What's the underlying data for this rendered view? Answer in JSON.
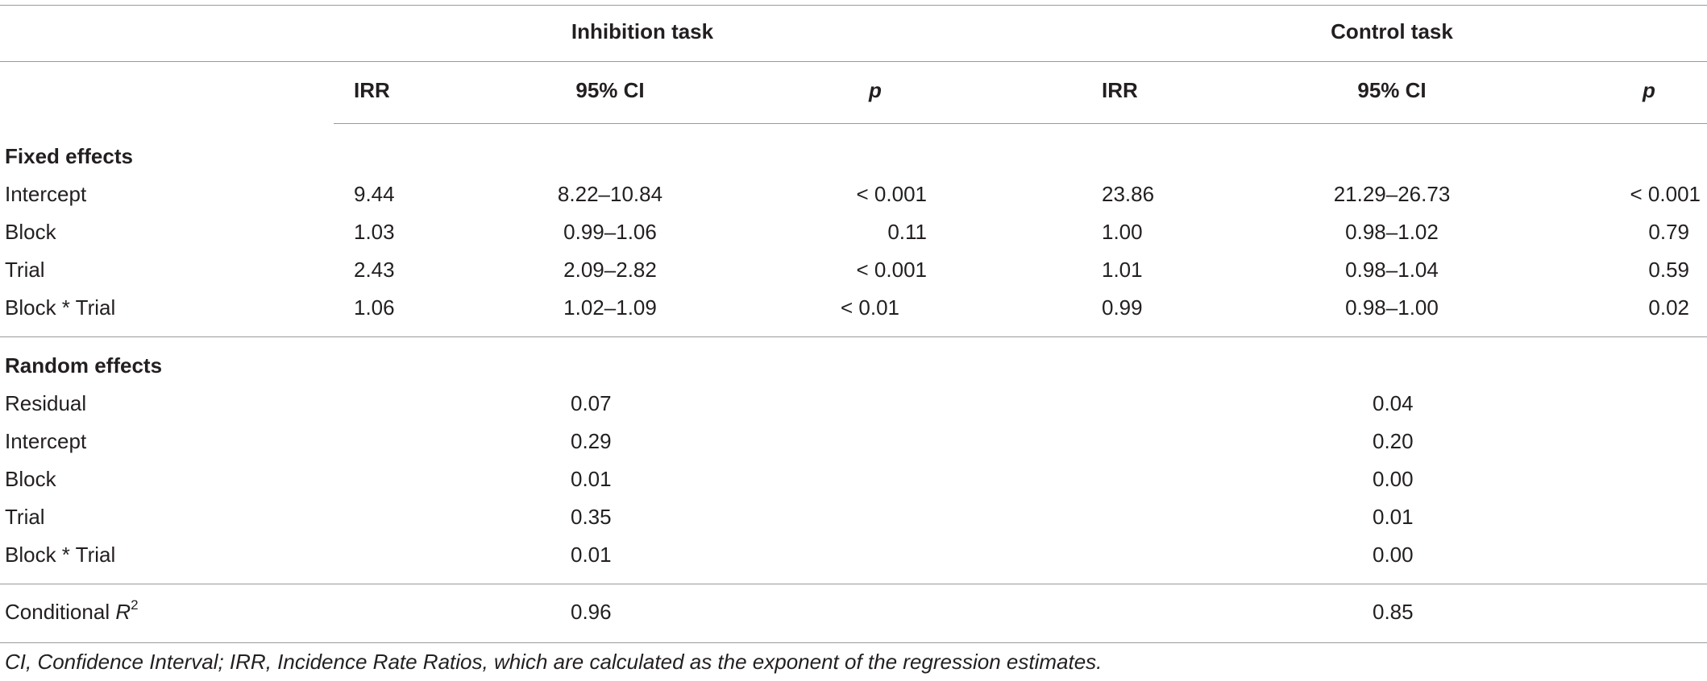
{
  "table": {
    "group_headers": {
      "inhibition": "Inhibition task",
      "control": "Control task"
    },
    "column_headers": [
      "IRR",
      "95% CI",
      "p",
      "IRR",
      "95% CI",
      "p"
    ],
    "sections": {
      "fixed": {
        "title": "Fixed effects",
        "rows": [
          {
            "label": "Intercept",
            "inh_irr": "9.44",
            "inh_ci": "8.22–10.84",
            "inh_p": "< 0.001",
            "ctl_irr": "23.86",
            "ctl_ci": "21.29–26.73",
            "ctl_p": "< 0.001"
          },
          {
            "label": "Block",
            "inh_irr": "1.03",
            "inh_ci": "0.99–1.06",
            "inh_p": "0.11",
            "ctl_irr": "1.00",
            "ctl_ci": "0.98–1.02",
            "ctl_p": "0.79"
          },
          {
            "label": "Trial",
            "inh_irr": "2.43",
            "inh_ci": "2.09–2.82",
            "inh_p": "< 0.001",
            "ctl_irr": "1.01",
            "ctl_ci": "0.98–1.04",
            "ctl_p": "0.59"
          },
          {
            "label": "Block * Trial",
            "inh_irr": "1.06",
            "inh_ci": "1.02–1.09",
            "inh_p": "< 0.01",
            "ctl_irr": "0.99",
            "ctl_ci": "0.98–1.00",
            "ctl_p": "0.02"
          }
        ]
      },
      "random": {
        "title": "Random effects",
        "rows": [
          {
            "label": "Residual",
            "inh": "0.07",
            "ctl": "0.04"
          },
          {
            "label": "Intercept",
            "inh": "0.29",
            "ctl": "0.20"
          },
          {
            "label": "Block",
            "inh": "0.01",
            "ctl": "0.00"
          },
          {
            "label": "Trial",
            "inh": "0.35",
            "ctl": "0.01"
          },
          {
            "label": "Block * Trial",
            "inh": "0.01",
            "ctl": "0.00"
          }
        ]
      }
    },
    "conditional": {
      "label": "Conditional ",
      "label_var": "R",
      "label_sup": "2",
      "inh": "0.96",
      "ctl": "0.85"
    }
  },
  "footnote": "CI, Confidence Interval; IRR, Incidence Rate Ratios, which are calculated as the exponent of the regression estimates."
}
